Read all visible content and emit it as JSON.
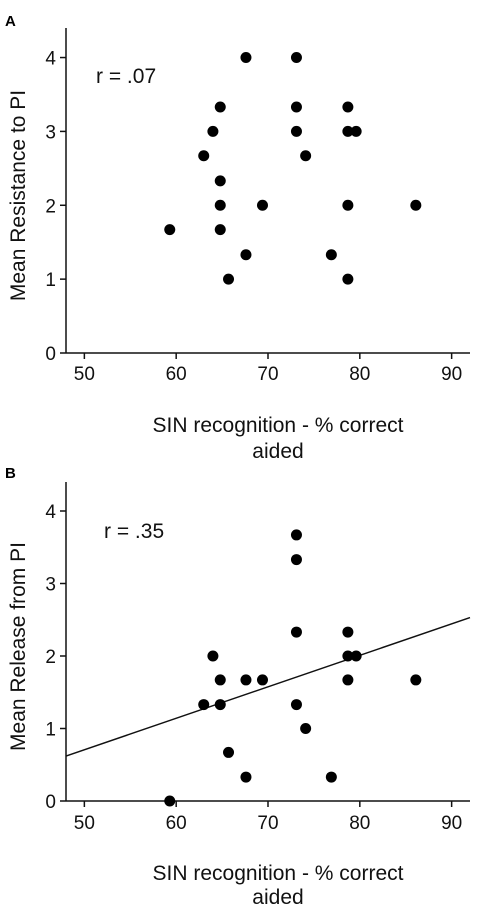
{
  "chart_data": [
    {
      "panel_label": "A",
      "type": "scatter",
      "title": "",
      "xlabel_line1": "SIN recognition - % correct",
      "xlabel_line2": "aided",
      "ylabel": "Mean Resistance to PI",
      "annotation": "r = .07",
      "xlim": [
        48,
        92
      ],
      "ylim": [
        0,
        4.4
      ],
      "xticks": [
        50,
        60,
        70,
        80,
        90
      ],
      "yticks": [
        0,
        1,
        2,
        3,
        4
      ],
      "grid": false,
      "fit_line": null,
      "points": [
        {
          "x": 59.3,
          "y": 1.67
        },
        {
          "x": 63.0,
          "y": 2.67
        },
        {
          "x": 64.0,
          "y": 3.0
        },
        {
          "x": 64.8,
          "y": 3.33
        },
        {
          "x": 64.8,
          "y": 2.33
        },
        {
          "x": 64.8,
          "y": 2.0
        },
        {
          "x": 64.8,
          "y": 1.67
        },
        {
          "x": 65.7,
          "y": 1.0
        },
        {
          "x": 67.6,
          "y": 4.0
        },
        {
          "x": 67.6,
          "y": 1.33
        },
        {
          "x": 69.4,
          "y": 2.0
        },
        {
          "x": 73.1,
          "y": 4.0
        },
        {
          "x": 73.1,
          "y": 3.33
        },
        {
          "x": 73.1,
          "y": 3.0
        },
        {
          "x": 74.1,
          "y": 2.67
        },
        {
          "x": 76.9,
          "y": 1.33
        },
        {
          "x": 78.7,
          "y": 3.33
        },
        {
          "x": 78.7,
          "y": 3.0
        },
        {
          "x": 78.7,
          "y": 2.0
        },
        {
          "x": 78.7,
          "y": 1.0
        },
        {
          "x": 79.6,
          "y": 3.0
        },
        {
          "x": 86.1,
          "y": 2.0
        }
      ]
    },
    {
      "panel_label": "B",
      "type": "scatter",
      "title": "",
      "xlabel_line1": "SIN recognition - % correct",
      "xlabel_line2": "aided",
      "ylabel": "Mean Release from PI",
      "annotation": "r = .35",
      "xlim": [
        48,
        92
      ],
      "ylim": [
        0,
        4.4
      ],
      "xticks": [
        50,
        60,
        70,
        80,
        90
      ],
      "yticks": [
        0,
        1,
        2,
        3,
        4
      ],
      "grid": false,
      "fit_line": {
        "x": [
          48,
          92
        ],
        "y": [
          0.62,
          2.53
        ]
      },
      "points": [
        {
          "x": 59.3,
          "y": 0.0
        },
        {
          "x": 63.0,
          "y": 1.33
        },
        {
          "x": 64.0,
          "y": 2.0
        },
        {
          "x": 64.8,
          "y": 1.67
        },
        {
          "x": 64.8,
          "y": 1.33
        },
        {
          "x": 65.7,
          "y": 0.67
        },
        {
          "x": 67.6,
          "y": 1.67
        },
        {
          "x": 67.6,
          "y": 0.33
        },
        {
          "x": 69.4,
          "y": 1.67
        },
        {
          "x": 73.1,
          "y": 3.67
        },
        {
          "x": 73.1,
          "y": 3.33
        },
        {
          "x": 73.1,
          "y": 2.33
        },
        {
          "x": 73.1,
          "y": 1.33
        },
        {
          "x": 74.1,
          "y": 1.0
        },
        {
          "x": 76.9,
          "y": 0.33
        },
        {
          "x": 78.7,
          "y": 2.33
        },
        {
          "x": 78.7,
          "y": 2.0
        },
        {
          "x": 78.7,
          "y": 1.67
        },
        {
          "x": 79.6,
          "y": 2.0
        },
        {
          "x": 86.1,
          "y": 1.67
        }
      ]
    }
  ]
}
